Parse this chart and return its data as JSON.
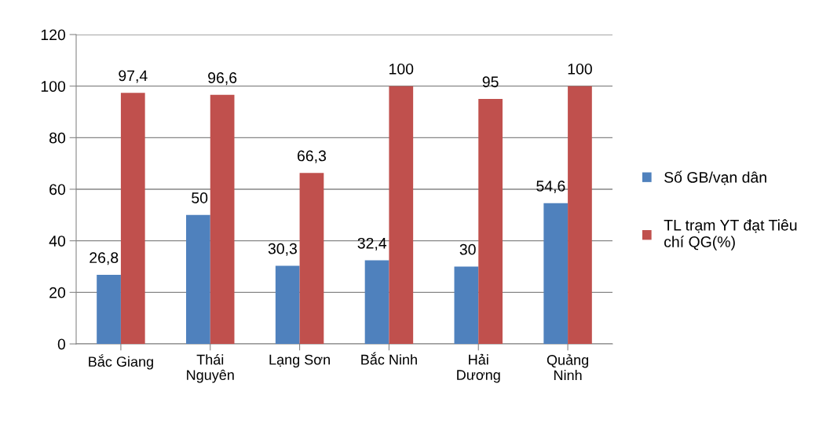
{
  "chart_data": {
    "type": "bar",
    "categories": [
      "Bắc Giang",
      "Thái\nNguyên",
      "Lạng Sơn",
      "Bắc Ninh",
      "Hải\nDương",
      "Quảng\nNinh"
    ],
    "series": [
      {
        "name": "Số GB/vạn dân",
        "color": "#4f81bd",
        "values": [
          26.8,
          50,
          30.3,
          32.4,
          30,
          54.6
        ],
        "value_labels": [
          "26,8",
          "50",
          "30,3",
          "32,4",
          "30",
          "54,6"
        ]
      },
      {
        "name": "TL trạm YT đạt Tiêu\nchí QG(%)",
        "color": "#c0504d",
        "values": [
          97.4,
          96.6,
          66.3,
          100,
          95,
          100
        ],
        "value_labels": [
          "97,4",
          "96,6",
          "66,3",
          "100",
          "95",
          "100"
        ]
      }
    ],
    "ylim": [
      0,
      120
    ],
    "yticks": [
      0,
      20,
      40,
      60,
      80,
      100,
      120
    ],
    "grid": "y",
    "legend": "right"
  }
}
